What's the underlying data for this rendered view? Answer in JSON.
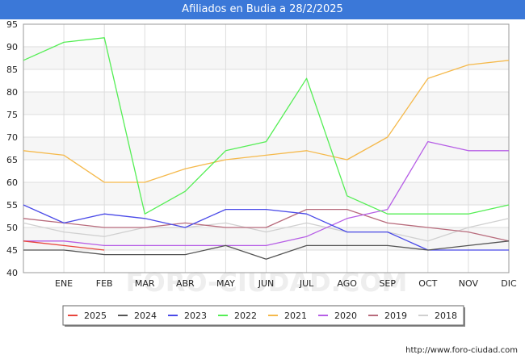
{
  "title": "Afiliados en Budia a 28/2/2025",
  "watermark": "FORO-CIUDAD.COM",
  "footer_url": "http://www.foro-ciudad.com",
  "chart_data": {
    "type": "line",
    "title": "Afiliados en Budia a 28/2/2025",
    "xlabel": "",
    "ylabel": "",
    "ylim": [
      40,
      95
    ],
    "yticks": [
      40,
      45,
      50,
      55,
      60,
      65,
      70,
      75,
      80,
      85,
      90,
      95
    ],
    "x_positions": [
      "",
      "ENE",
      "FEB",
      "MAR",
      "ABR",
      "MAY",
      "JUN",
      "JUL",
      "AGO",
      "SEP",
      "OCT",
      "NOV",
      "DIC"
    ],
    "x_tick_labels": [
      "ENE",
      "FEB",
      "MAR",
      "ABR",
      "MAY",
      "JUN",
      "JUL",
      "AGO",
      "SEP",
      "OCT",
      "NOV",
      "DIC"
    ],
    "grid": true,
    "legend_position": "bottom",
    "series": [
      {
        "name": "2025",
        "color": "#e8453c",
        "values": [
          47,
          46,
          45
        ]
      },
      {
        "name": "2024",
        "color": "#555555",
        "values": [
          45,
          45,
          44,
          44,
          44,
          46,
          43,
          46,
          46,
          46,
          45,
          46,
          47
        ]
      },
      {
        "name": "2023",
        "color": "#4a4ae8",
        "values": [
          55,
          51,
          53,
          52,
          50,
          54,
          54,
          53,
          49,
          49,
          45,
          45,
          45
        ]
      },
      {
        "name": "2022",
        "color": "#55ee55",
        "values": [
          87,
          91,
          92,
          53,
          58,
          67,
          69,
          83,
          57,
          53,
          53,
          53,
          55
        ]
      },
      {
        "name": "2021",
        "color": "#f5b94b",
        "values": [
          67,
          66,
          60,
          60,
          63,
          65,
          66,
          67,
          65,
          70,
          83,
          86,
          87
        ]
      },
      {
        "name": "2020",
        "color": "#b65ee6",
        "values": [
          47,
          47,
          46,
          46,
          46,
          46,
          46,
          48,
          52,
          54,
          69,
          67,
          67
        ]
      },
      {
        "name": "2019",
        "color": "#b86b7c",
        "values": [
          52,
          51,
          50,
          50,
          51,
          50,
          50,
          54,
          54,
          51,
          50,
          49,
          47
        ]
      },
      {
        "name": "2018",
        "color": "#d0d0d0",
        "values": [
          51,
          49,
          48,
          50,
          50,
          51,
          49,
          51,
          49,
          49,
          47,
          50,
          52
        ]
      }
    ]
  }
}
